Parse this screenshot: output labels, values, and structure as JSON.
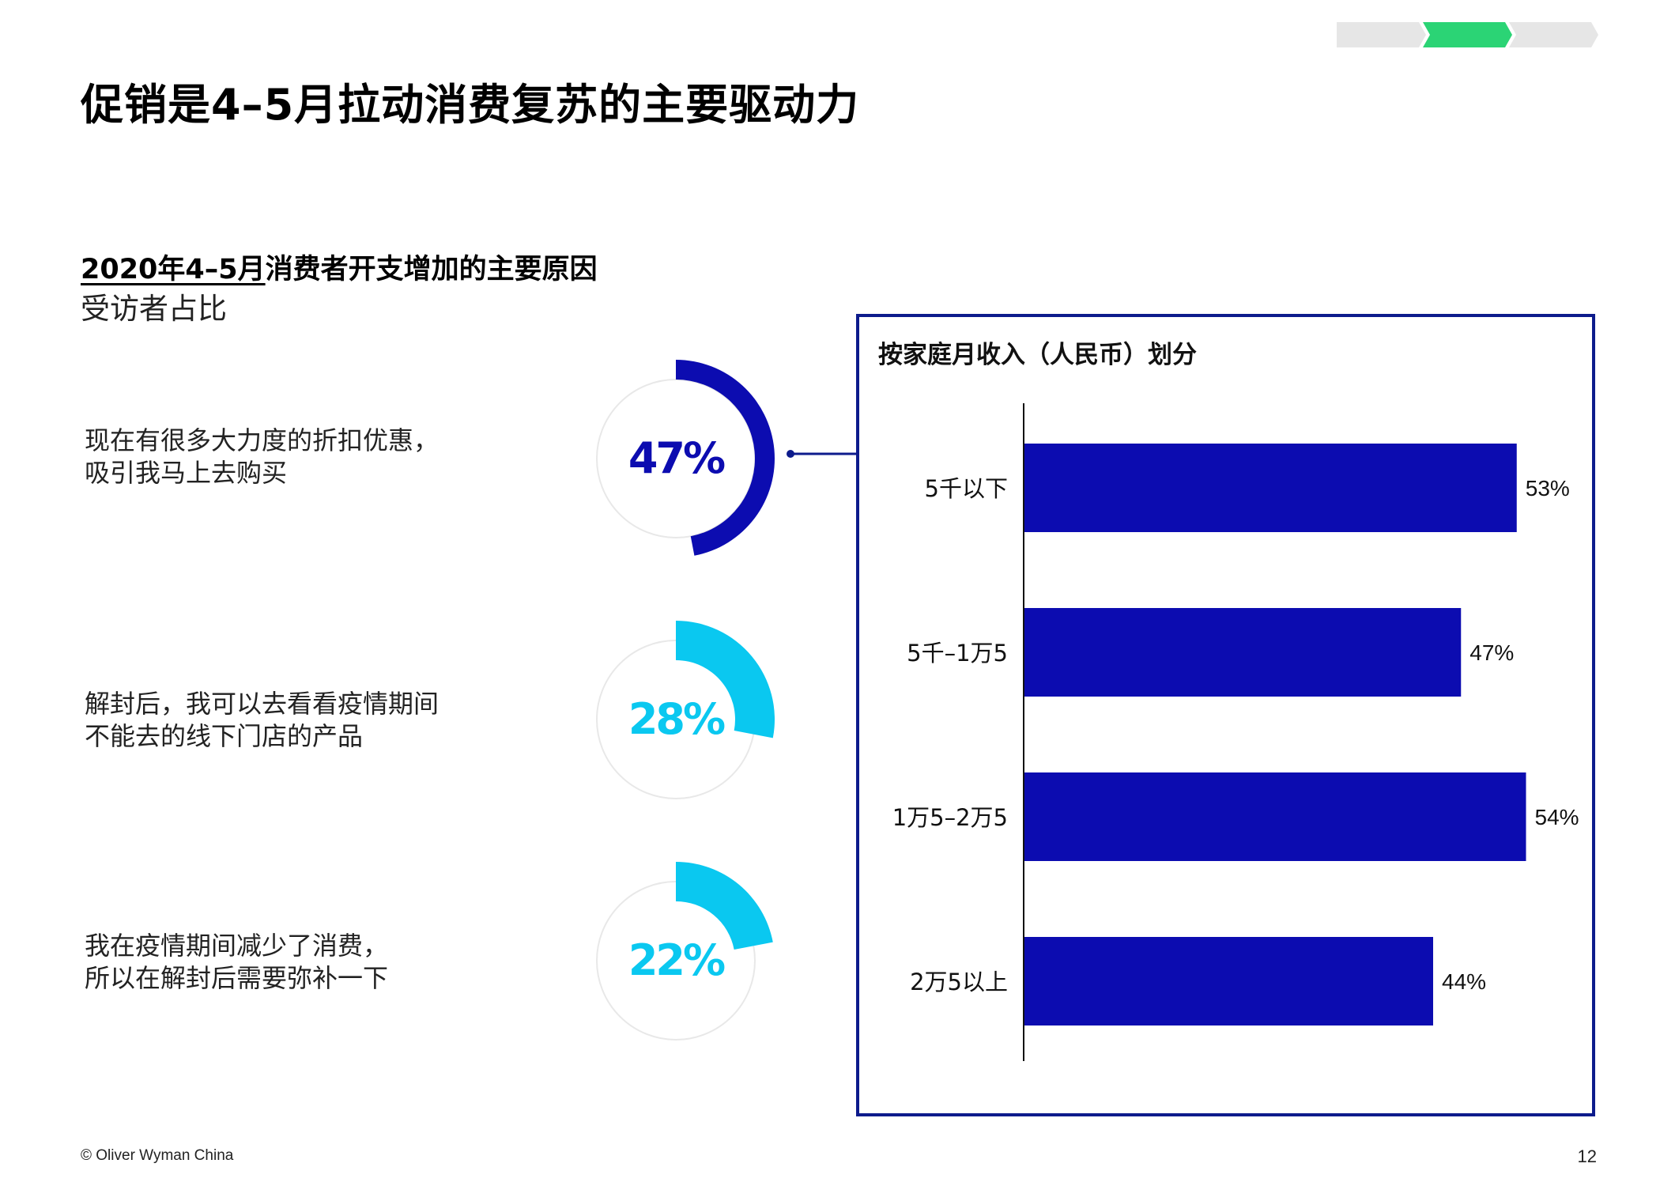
{
  "slide": {
    "title": "促销是4–5月拉动消费复苏的主要驱动力",
    "section_title_underlined": "2020年4–5月",
    "section_title_rest": "消费者开支增加的主要原因",
    "subtitle": "受访者占比",
    "progress_steps": [
      "inactive",
      "active",
      "inactive"
    ],
    "colors": {
      "progress_inactive": "#e6e6e6",
      "progress_active": "#2bd475",
      "dark_blue": "#0c0cb0",
      "light_blue": "#0ac8f0",
      "ring_track": "#e8e8e8",
      "box_border": "#0d1b8c"
    }
  },
  "reasons": [
    {
      "line1": "现在有很多大力度的折扣优惠，",
      "line2": "吸引我马上去购买",
      "value": 47,
      "label": "47%",
      "color": "dark"
    },
    {
      "line1": "解封后，我可以去看看疫情期间",
      "line2": "不能去的线下门店的产品",
      "value": 28,
      "label": "28%",
      "color": "light"
    },
    {
      "line1": "我在疫情期间减少了消费，",
      "line2": "所以在解封后需要弥补一下",
      "value": 22,
      "label": "22%",
      "color": "light"
    }
  ],
  "chart_data": {
    "type": "bar",
    "orientation": "horizontal",
    "title": "按家庭月收入（人民币）划分",
    "categories": [
      "5千以下",
      "5千–1万5",
      "1万5–2万5",
      "2万5以上"
    ],
    "values": [
      53,
      47,
      54,
      44
    ],
    "value_labels": [
      "53%",
      "47%",
      "54%",
      "44%"
    ],
    "unit": "%",
    "xlim": [
      0,
      60
    ],
    "grid": false,
    "legend": "none"
  },
  "footer": {
    "copyright": "© Oliver Wyman China",
    "page_number": "12"
  }
}
